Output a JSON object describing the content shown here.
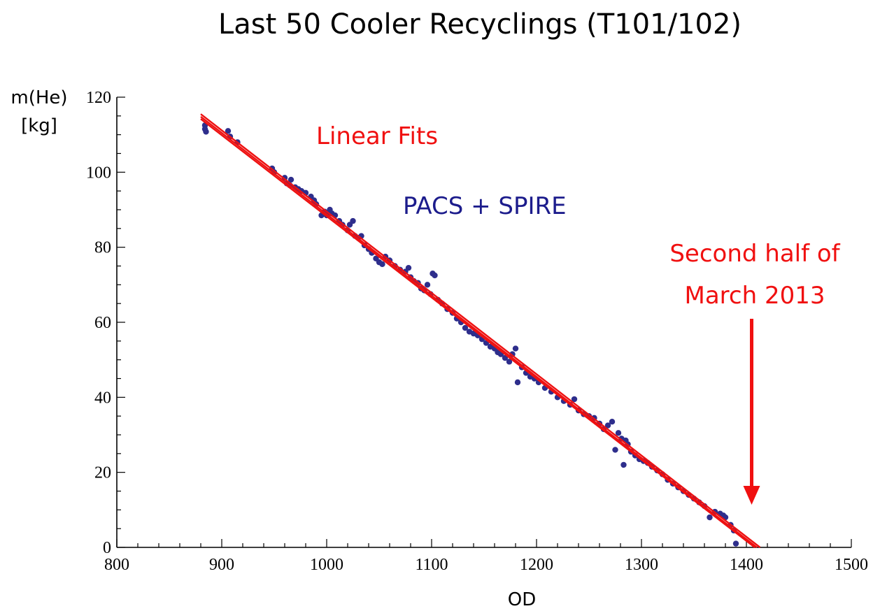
{
  "chart_data": {
    "type": "scatter",
    "title": "Last 50 Cooler Recyclings (T101/102)",
    "xlabel": "OD",
    "ylabel_line1": "m(He)",
    "ylabel_line2": "[kg]",
    "xlim": [
      800,
      1500
    ],
    "ylim": [
      0,
      120
    ],
    "xticks": [
      800,
      900,
      1000,
      1100,
      1200,
      1300,
      1400,
      1500
    ],
    "yticks": [
      0,
      20,
      40,
      60,
      80,
      100,
      120
    ],
    "grid": false,
    "annotations": {
      "fit_label": "Linear Fits",
      "instrument_label": "PACS + SPIRE",
      "arrow_label_line1": "Second half of",
      "arrow_label_line2": "March 2013",
      "arrow_x": 1405
    },
    "colors": {
      "points": "#2e2e8c",
      "fits": "#ee1111",
      "instrument": "#1c1c8c",
      "annotation": "#f01010"
    },
    "fits": [
      {
        "x": [
          880,
          1413
        ],
        "y": [
          115.5,
          0
        ]
      },
      {
        "x": [
          880,
          1410
        ],
        "y": [
          114.8,
          0
        ]
      },
      {
        "x": [
          880,
          1408
        ],
        "y": [
          114.2,
          0
        ]
      }
    ],
    "series": [
      {
        "x": [
          884,
          885,
          884,
          906,
          908,
          915,
          948,
          950,
          960,
          962,
          965,
          966,
          970,
          973,
          976,
          980,
          985,
          988,
          990,
          995,
          998,
          1000,
          1003,
          1005,
          1008,
          1012,
          1015,
          1020,
          1022,
          1025,
          1027,
          1030,
          1033,
          1036,
          1040,
          1043,
          1047,
          1050,
          1053,
          1056,
          1060,
          1065,
          1070,
          1075,
          1078,
          1080,
          1083,
          1087,
          1090,
          1093,
          1096,
          1099,
          1101,
          1103,
          1106,
          1110,
          1115,
          1120,
          1124,
          1128,
          1132,
          1136,
          1140,
          1144,
          1148,
          1152,
          1156,
          1160,
          1163,
          1166,
          1170,
          1174,
          1177,
          1180,
          1182,
          1186,
          1190,
          1194,
          1198,
          1202,
          1208,
          1214,
          1220,
          1226,
          1232,
          1236,
          1240,
          1245,
          1250,
          1255,
          1260,
          1264,
          1268,
          1272,
          1275,
          1278,
          1281,
          1283,
          1285,
          1287,
          1290,
          1294,
          1298,
          1302,
          1306,
          1310,
          1315,
          1320,
          1325,
          1330,
          1335,
          1340,
          1345,
          1350,
          1355,
          1360,
          1365,
          1370,
          1375,
          1378,
          1380,
          1385,
          1388,
          1390
        ],
        "y": [
          112.5,
          110.8,
          111.5,
          111.0,
          109.5,
          108.0,
          101.0,
          100.0,
          98.5,
          97.0,
          96.5,
          98.0,
          96.0,
          95.5,
          95.0,
          94.5,
          93.5,
          92.5,
          91.5,
          88.5,
          89.5,
          88.5,
          90.0,
          89.0,
          88.5,
          87.0,
          86.0,
          84.5,
          86.0,
          87.0,
          83.0,
          82.5,
          83.0,
          80.5,
          79.5,
          78.5,
          77.0,
          76.0,
          75.5,
          77.5,
          76.5,
          75.0,
          74.0,
          73.5,
          74.5,
          72.0,
          71.0,
          70.5,
          69.0,
          68.5,
          70.0,
          67.5,
          73.0,
          72.5,
          66.0,
          65.0,
          63.5,
          62.5,
          61.0,
          60.0,
          58.5,
          57.5,
          57.0,
          56.5,
          55.5,
          54.5,
          53.5,
          53.0,
          52.0,
          51.5,
          50.5,
          49.5,
          51.5,
          53.0,
          44.0,
          48.0,
          46.5,
          45.5,
          45.0,
          44.0,
          42.5,
          41.5,
          40.0,
          39.0,
          38.0,
          39.5,
          36.5,
          35.5,
          35.0,
          34.5,
          33.0,
          31.5,
          32.5,
          33.5,
          26.0,
          30.5,
          29.0,
          22.0,
          28.5,
          27.5,
          25.5,
          24.5,
          23.5,
          23.0,
          22.5,
          21.5,
          20.5,
          19.5,
          18.0,
          17.0,
          16.0,
          15.0,
          14.0,
          13.0,
          12.0,
          11.0,
          8.0,
          9.5,
          9.0,
          8.5,
          8.0,
          6.0,
          4.5,
          1.0
        ]
      }
    ]
  }
}
